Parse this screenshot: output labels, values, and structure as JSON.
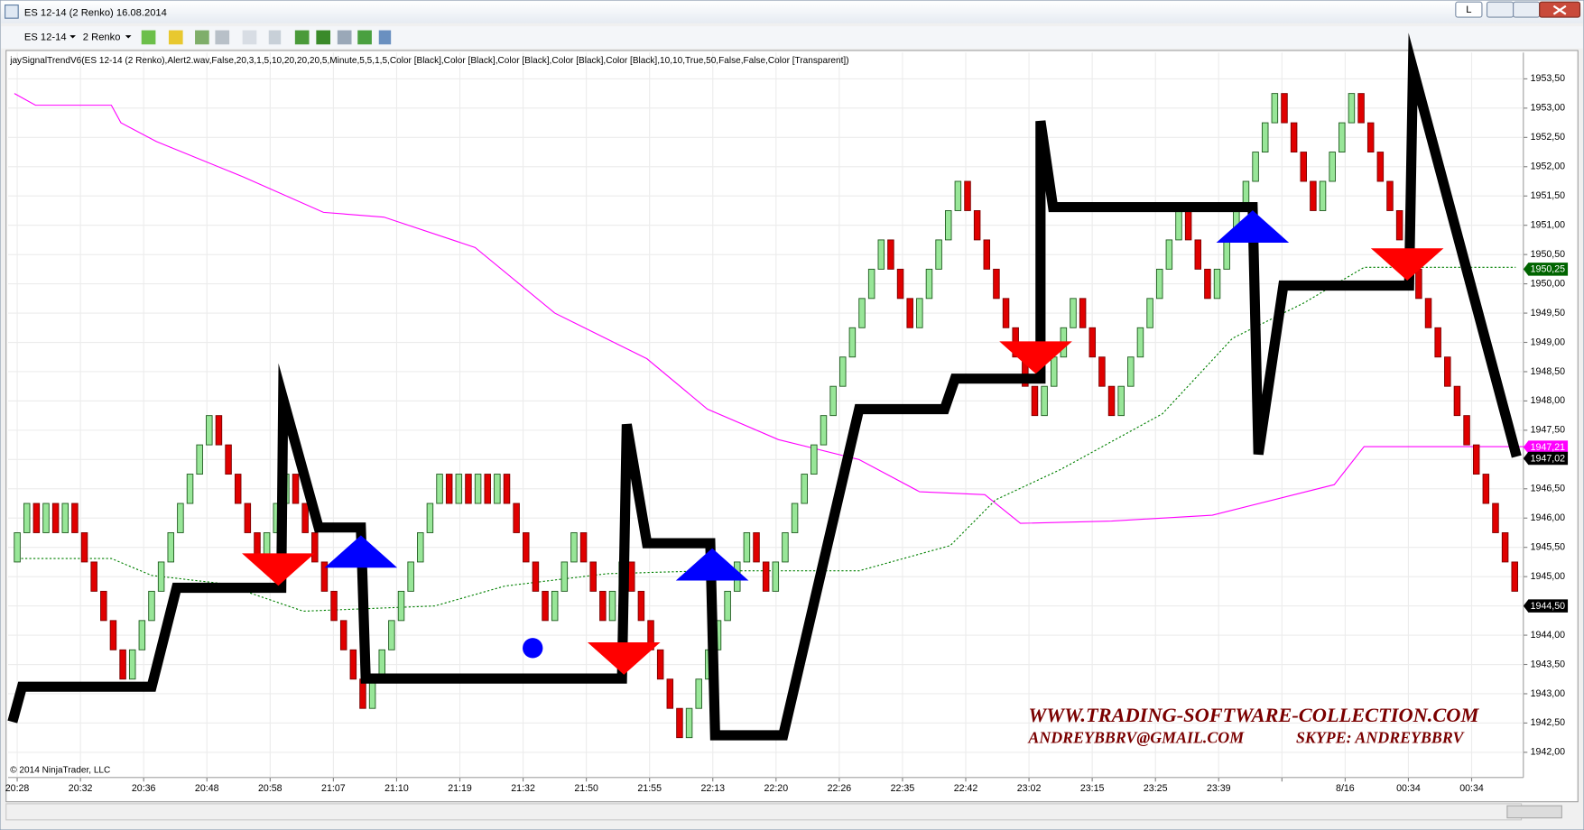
{
  "window": {
    "title": "ES 12-14 (2 Renko) 16.08.2014",
    "button": "L"
  },
  "toolbar": {
    "instrument": "ES 12-14",
    "period": "2 Renko"
  },
  "chart_data": {
    "type": "renko",
    "indicator_label": "jaySignalTrendV6(ES 12-14 (2 Renko),Alert2.wav,False,20,3,1,5,10,20,20,20,5,Minute,5,5,1,5,Color [Black],Color [Black],Color [Black],Color [Black],Color [Black],10,10,True,50,False,False,Color [Transparent])",
    "brick_size": 0.5,
    "up_color": "#98e698",
    "down_color": "#e00000",
    "closes": [
      1945.75,
      1946.25,
      1945.75,
      1946.25,
      1945.75,
      1946.25,
      1945.75,
      1945.25,
      1944.75,
      1944.25,
      1943.75,
      1943.25,
      1943.75,
      1944.25,
      1944.75,
      1945.25,
      1945.75,
      1946.25,
      1946.75,
      1947.25,
      1947.75,
      1947.25,
      1946.75,
      1946.25,
      1945.75,
      1945.25,
      1945.75,
      1946.25,
      1946.75,
      1946.25,
      1945.75,
      1945.25,
      1944.75,
      1944.25,
      1943.75,
      1943.25,
      1942.75,
      1943.25,
      1943.75,
      1944.25,
      1944.75,
      1945.25,
      1945.75,
      1946.25,
      1946.75,
      1946.25,
      1946.75,
      1946.25,
      1946.75,
      1946.25,
      1946.75,
      1946.25,
      1945.75,
      1945.25,
      1944.75,
      1944.25,
      1944.75,
      1945.25,
      1945.75,
      1945.25,
      1944.75,
      1944.25,
      1944.75,
      1945.25,
      1944.75,
      1944.25,
      1943.75,
      1943.25,
      1942.75,
      1942.25,
      1942.75,
      1943.25,
      1943.75,
      1944.25,
      1944.75,
      1945.25,
      1945.75,
      1945.25,
      1944.75,
      1945.25,
      1945.75,
      1946.25,
      1946.75,
      1947.25,
      1947.75,
      1948.25,
      1948.75,
      1949.25,
      1949.75,
      1950.25,
      1950.75,
      1950.25,
      1949.75,
      1949.25,
      1949.75,
      1950.25,
      1950.75,
      1951.25,
      1951.75,
      1951.25,
      1950.75,
      1950.25,
      1949.75,
      1949.25,
      1948.75,
      1948.25,
      1947.75,
      1948.25,
      1948.75,
      1949.25,
      1949.75,
      1949.25,
      1948.75,
      1948.25,
      1947.75,
      1948.25,
      1948.75,
      1949.25,
      1949.75,
      1950.25,
      1950.75,
      1951.25,
      1950.75,
      1950.25,
      1949.75,
      1950.25,
      1950.75,
      1951.25,
      1951.75,
      1952.25,
      1952.75,
      1953.25,
      1952.75,
      1952.25,
      1951.75,
      1951.25,
      1951.75,
      1952.25,
      1952.75,
      1953.25,
      1952.75,
      1952.25,
      1951.75,
      1951.25,
      1950.75,
      1950.25,
      1949.75,
      1949.25,
      1948.75,
      1948.25,
      1947.75,
      1947.25,
      1946.75,
      1946.25,
      1945.75,
      1945.25,
      1944.75
    ],
    "xlim": [
      -0.95,
      156.9
    ],
    "ylim": [
      1941.57,
      1953.95
    ],
    "yticks": [
      {
        "value": 1942,
        "label": "1942,00"
      },
      {
        "value": 1942.5,
        "label": "1942,50"
      },
      {
        "value": 1943,
        "label": "1943,00"
      },
      {
        "value": 1943.5,
        "label": "1943,50"
      },
      {
        "value": 1944,
        "label": "1944,00"
      },
      {
        "value": 1944.5,
        "label": "1944,50"
      },
      {
        "value": 1945,
        "label": "1945,00"
      },
      {
        "value": 1945.5,
        "label": "1945,50"
      },
      {
        "value": 1946,
        "label": "1946,00"
      },
      {
        "value": 1946.5,
        "label": "1946,50"
      },
      {
        "value": 1947,
        "label": "1947,00"
      },
      {
        "value": 1947.5,
        "label": "1947,50"
      },
      {
        "value": 1948,
        "label": "1948,00"
      },
      {
        "value": 1948.5,
        "label": "1948,50"
      },
      {
        "value": 1949,
        "label": "1949,00"
      },
      {
        "value": 1949.5,
        "label": "1949,50"
      },
      {
        "value": 1950,
        "label": "1950,00"
      },
      {
        "value": 1950.5,
        "label": "1950,50"
      },
      {
        "value": 1951,
        "label": "1951,00"
      },
      {
        "value": 1951.5,
        "label": "1951,50"
      },
      {
        "value": 1952,
        "label": "1952,00"
      },
      {
        "value": 1952.5,
        "label": "1952,50"
      },
      {
        "value": 1953,
        "label": "1953,00"
      },
      {
        "value": 1953.5,
        "label": "1953,50"
      }
    ],
    "grid": true,
    "series": [
      {
        "color": "#ff00ff",
        "width": 1,
        "dashed": false,
        "x": [
          -0.3,
          1.9,
          9.8,
          10.8,
          14.5,
          23.5,
          31.9,
          38.2,
          47.7,
          56,
          65.6,
          71.9,
          79.3,
          87.7,
          94,
          100.8,
          104.5,
          114,
          124.5,
          137.2,
          140.3,
          157
        ],
        "values": [
          1953.25,
          1953.05,
          1953.05,
          1952.75,
          1952.43,
          1951.83,
          1951.22,
          1951.14,
          1950.62,
          1949.5,
          1948.72,
          1947.86,
          1947.34,
          1947.0,
          1946.45,
          1946.4,
          1945.91,
          1945.95,
          1946.05,
          1946.57,
          1947.22,
          1947.22
        ]
      },
      {
        "color": "#008000",
        "width": 1,
        "dashed": true,
        "x": [
          0,
          9.8,
          14,
          21.4,
          29.8,
          43.5,
          50.8,
          61.4,
          71.9,
          87.7,
          97.2,
          101.9,
          108.7,
          119.3,
          126.6,
          134,
          140.3,
          156.1
        ],
        "values": [
          1945.31,
          1945.31,
          1945.02,
          1944.88,
          1944.41,
          1944.5,
          1944.84,
          1945.05,
          1945.1,
          1945.1,
          1945.53,
          1946.31,
          1946.83,
          1947.78,
          1949.07,
          1949.67,
          1950.28,
          1950.28
        ]
      },
      {
        "color": "#000000",
        "width": 10,
        "dashed": false,
        "x": [
          -0.5,
          0.5,
          14,
          16.6,
          27.5,
          27.7,
          31.4,
          35.8,
          36.3,
          63,
          63.5,
          65.6,
          72.2,
          72.7,
          79.8,
          87.7,
          96.6,
          97.7,
          106.6,
          106.6,
          107.9,
          128.7,
          129.3,
          131.9,
          145,
          145.4,
          156.2
        ],
        "values": [
          1942.52,
          1943.12,
          1943.12,
          1944.81,
          1944.81,
          1948.03,
          1945.84,
          1945.84,
          1943.26,
          1943.26,
          1947.6,
          1945.57,
          1945.57,
          1942.29,
          1942.29,
          1947.86,
          1947.86,
          1948.38,
          1948.38,
          1952.78,
          1951.31,
          1951.31,
          1947.09,
          1949.97,
          1949.97,
          1953.67,
          1947.05
        ]
      }
    ],
    "markers": [
      {
        "shape": "down",
        "color": "#ff0000",
        "x": [
          27.2,
          63.2,
          106.1,
          144.8
        ],
        "values": [
          1945.19,
          1943.67,
          1948.81,
          1950.4
        ]
      },
      {
        "shape": "up",
        "color": "#0000ff",
        "x": [
          35.8,
          72.4,
          128.7
        ],
        "values": [
          1945.36,
          1945.14,
          1950.91
        ]
      },
      {
        "shape": "dot",
        "color": "#0000ff",
        "x": [
          53.7
        ],
        "values": [
          1943.78
        ]
      }
    ],
    "price_tags": [
      {
        "value": 1950.25,
        "label": "1950,25",
        "color": "#006400"
      },
      {
        "value": 1947.21,
        "label": "1947,21",
        "color": "#ff00ff"
      },
      {
        "value": 1947.02,
        "label": "1947,02",
        "color": "#000000"
      },
      {
        "value": 1944.5,
        "label": "1944,50",
        "color": "#000000"
      }
    ],
    "time_labels": [
      "20:28",
      "20:32",
      "20:36",
      "20:48",
      "20:58",
      "21:07",
      "21:10",
      "21:19",
      "21:32",
      "21:50",
      "21:55",
      "22:13",
      "22:20",
      "22:26",
      "22:35",
      "22:42",
      "23:02",
      "23:15",
      "23:25",
      "23:39",
      null,
      "8/16",
      "00:34",
      "00:34"
    ],
    "copyright": "© 2014 NinjaTrader, LLC",
    "watermark": [
      "WWW.TRADING-SOFTWARE-COLLECTION.COM",
      "ANDREYBBRV@GMAIL.COM",
      "SKYPE: ANDREYBBRV"
    ]
  }
}
